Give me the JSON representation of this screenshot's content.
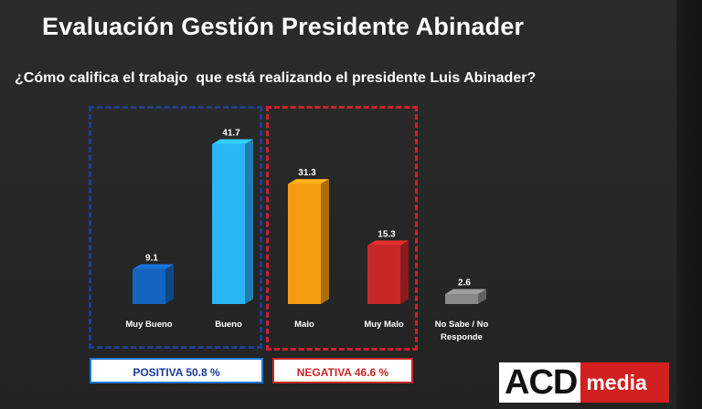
{
  "title": "Evaluación Gestión Presidente Abinader",
  "subtitle": "¿Cómo califica el trabajo  que está realizando el presidente Luis Abinader?",
  "groups": {
    "positive_label": "POSITIVA 50.8 %",
    "negative_label": "NEGATIVA 46.6 %"
  },
  "logo": {
    "part1": "ACD",
    "part2": "media"
  },
  "colors": {
    "muy_bueno": "#1565c0",
    "bueno": "#29b6f6",
    "malo": "#f39c12",
    "muy_malo": "#c62828",
    "no_sabe": "#8a8a8a",
    "positive_box": "#1f3f8f",
    "negative_box": "#d0202a"
  },
  "chart_data": {
    "type": "bar",
    "categories": [
      "Muy Bueno",
      "Bueno",
      "Malo",
      "Muy Malo",
      "No Sabe / No Responde"
    ],
    "values": [
      9.1,
      41.7,
      31.3,
      15.3,
      2.6
    ],
    "value_labels": [
      "9.1",
      "41.7",
      "31.3",
      "15.3",
      "2.6"
    ],
    "ylim": [
      0,
      45
    ],
    "grid": false,
    "legend": "none"
  }
}
